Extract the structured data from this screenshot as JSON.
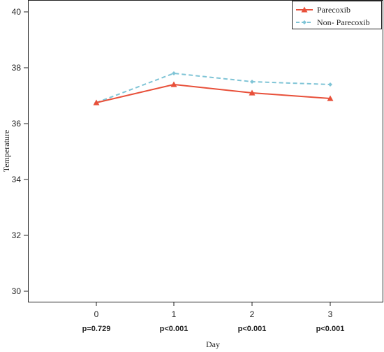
{
  "chart_data": {
    "type": "line",
    "xlabel": "Day",
    "ylabel": "Temperature",
    "categories": [
      "0",
      "1",
      "2",
      "3"
    ],
    "p_values": [
      "p=0.729",
      "p<0.001",
      "p<0.001",
      "p<0.001"
    ],
    "ylim": [
      30,
      40
    ],
    "yticks": [
      30,
      32,
      34,
      36,
      38,
      40
    ],
    "legend_position": "top-right",
    "series": [
      {
        "name": "Parecoxib",
        "values": [
          36.75,
          37.4,
          37.1,
          36.9
        ],
        "color": "#e8503a",
        "line_style": "solid",
        "marker": "triangle"
      },
      {
        "name": "Non- Parecoxib",
        "values": [
          36.75,
          37.8,
          37.5,
          37.4
        ],
        "color": "#7fc4d6",
        "line_style": "dashed",
        "marker": "diamond"
      }
    ]
  }
}
